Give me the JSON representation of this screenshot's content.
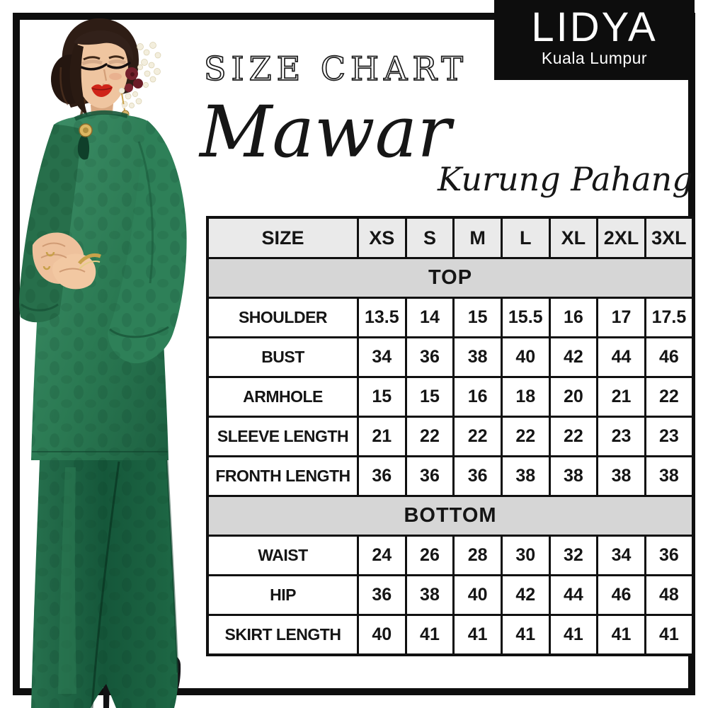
{
  "brand": {
    "name": "LIDYA",
    "location": "Kuala Lumpur"
  },
  "header": {
    "title": "SIZE CHART",
    "product_name": "Mawar",
    "product_subtitle": "Kurung Pahang"
  },
  "size_chart": {
    "columns": [
      "SIZE",
      "XS",
      "S",
      "M",
      "L",
      "XL",
      "2XL",
      "3XL"
    ],
    "sections": [
      {
        "label": "TOP",
        "rows": [
          {
            "label": "SHOULDER",
            "values": [
              "13.5",
              "14",
              "15",
              "15.5",
              "16",
              "17",
              "17.5"
            ]
          },
          {
            "label": "BUST",
            "values": [
              "34",
              "36",
              "38",
              "40",
              "42",
              "44",
              "46"
            ]
          },
          {
            "label": "ARMHOLE",
            "values": [
              "15",
              "15",
              "16",
              "18",
              "20",
              "21",
              "22"
            ]
          },
          {
            "label": "SLEEVE LENGTH",
            "values": [
              "21",
              "22",
              "22",
              "22",
              "22",
              "23",
              "23"
            ]
          },
          {
            "label": "FRONTH LENGTH",
            "values": [
              "36",
              "36",
              "36",
              "38",
              "38",
              "38",
              "38"
            ]
          }
        ]
      },
      {
        "label": "BOTTOM",
        "rows": [
          {
            "label": "WAIST",
            "values": [
              "24",
              "26",
              "28",
              "30",
              "32",
              "34",
              "36"
            ]
          },
          {
            "label": "HIP",
            "values": [
              "36",
              "38",
              "40",
              "42",
              "44",
              "46",
              "48"
            ]
          },
          {
            "label": "SKIRT LENGTH",
            "values": [
              "40",
              "41",
              "41",
              "41",
              "41",
              "41",
              "41"
            ]
          }
        ]
      }
    ]
  },
  "colors": {
    "frame_black": "#0e0e0e",
    "brand_box_black": "#0d0d0d",
    "header_row_gray": "#eaeaea",
    "section_band_gray": "#d6d6d6",
    "dress_green": "#2b7a53",
    "skirt_green": "#15573a",
    "lip_red": "#cf2418",
    "gold_accent": "#dcb762"
  }
}
